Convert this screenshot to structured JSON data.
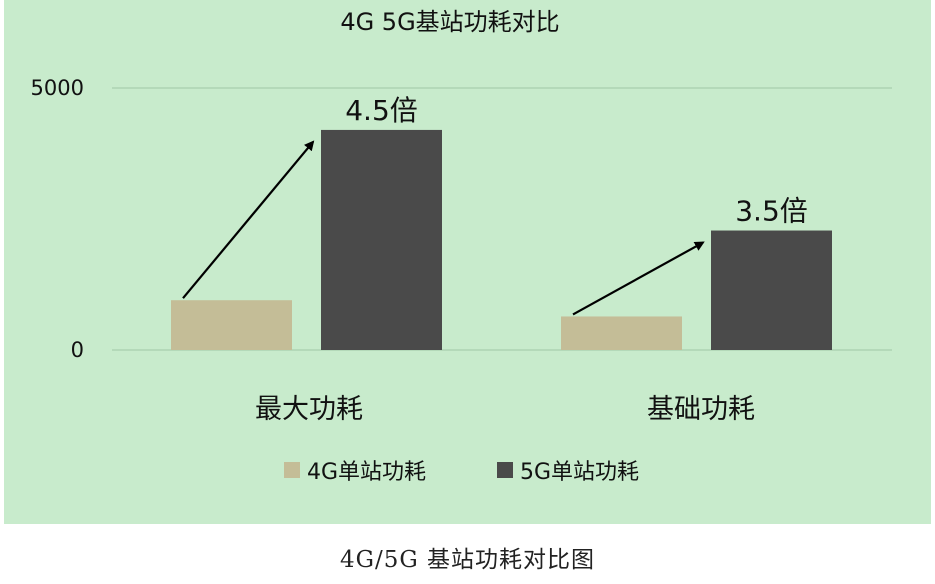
{
  "chart_data": {
    "type": "bar",
    "title": "4G 5G基站功耗对比",
    "categories": [
      "最大功耗",
      "基础功耗"
    ],
    "series": [
      {
        "name": "4G单站功耗",
        "values": [
          950,
          640
        ],
        "color": "#c4bd97"
      },
      {
        "name": "5G单站功耗",
        "values": [
          4200,
          2280
        ],
        "color": "#4a4a4a"
      }
    ],
    "annotations": [
      {
        "text": "4.5倍",
        "category_index": 0
      },
      {
        "text": "3.5倍",
        "category_index": 1
      }
    ],
    "ylim": [
      0,
      5000
    ],
    "yticks": [
      0,
      5000
    ],
    "grid": true,
    "legend": "bottom",
    "background": "#c8ebcc"
  },
  "caption": "4G/5G 基站功耗对比图"
}
